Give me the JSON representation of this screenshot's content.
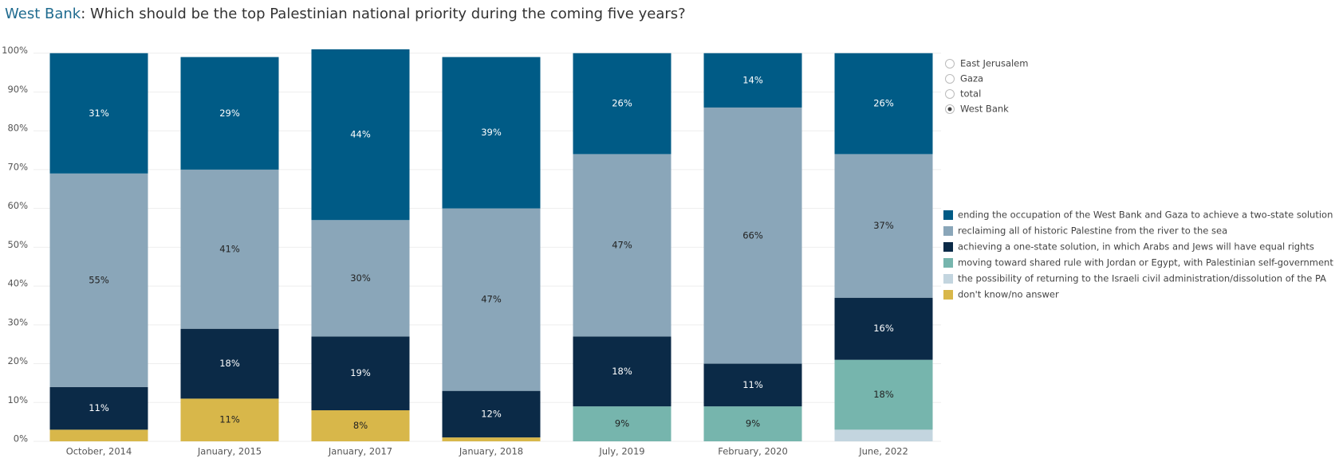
{
  "chart_data": {
    "type": "stacked_bar",
    "title_highlight": "West Bank",
    "title": ": Which should be the top Palestinian national priority during the coming five years?",
    "categories": [
      "October, 2014",
      "January, 2015",
      "January, 2017",
      "January, 2018",
      "July, 2019",
      "February, 2020",
      "June, 2022"
    ],
    "series": [
      {
        "name": "don't know/no answer",
        "color": "#d8b74a",
        "values": [
          3,
          11,
          8,
          1,
          null,
          null,
          null
        ],
        "value_labels": [
          null,
          "11%",
          "8%",
          null,
          null,
          null,
          null
        ]
      },
      {
        "name": "the possibility of returning to the Israeli civil administration/dissolution of the PA",
        "color": "#c3d5df",
        "values": [
          null,
          null,
          null,
          null,
          null,
          null,
          3
        ],
        "value_labels": [
          null,
          null,
          null,
          null,
          null,
          null,
          null
        ]
      },
      {
        "name": "moving toward shared rule with Jordan or Egypt, with Palestinian self-government",
        "color": "#76b5ad",
        "values": [
          null,
          null,
          null,
          null,
          9,
          9,
          18
        ],
        "value_labels": [
          null,
          null,
          null,
          null,
          "9%",
          "9%",
          "18%"
        ]
      },
      {
        "name": "achieving a one-state solution, in which Arabs and Jews will have equal rights",
        "color": "#0b2a47",
        "values": [
          11,
          18,
          19,
          12,
          18,
          11,
          16
        ],
        "value_labels": [
          "11%",
          "18%",
          "19%",
          "12%",
          "18%",
          "11%",
          "16%"
        ]
      },
      {
        "name": "reclaiming all of historic Palestine from the river to the sea",
        "color": "#8aa6b9",
        "values": [
          55,
          41,
          30,
          47,
          47,
          66,
          37
        ],
        "value_labels": [
          "55%",
          "41%",
          "30%",
          "47%",
          "47%",
          "66%",
          "37%"
        ]
      },
      {
        "name": "ending the occupation of the West Bank and Gaza to achieve a two-state solution",
        "color": "#005b86",
        "values": [
          31,
          29,
          44,
          39,
          26,
          14,
          26
        ],
        "value_labels": [
          "31%",
          "29%",
          "44%",
          "39%",
          "26%",
          "14%",
          "26%"
        ]
      }
    ],
    "ylim": [
      0,
      102
    ],
    "yticks": [
      {
        "value": 0,
        "label": "0%"
      },
      {
        "value": 10,
        "label": "10%"
      },
      {
        "value": 20,
        "label": "20%"
      },
      {
        "value": 30,
        "label": "30%"
      },
      {
        "value": 40,
        "label": "40%"
      },
      {
        "value": 50,
        "label": "50%"
      },
      {
        "value": 60,
        "label": "60%"
      },
      {
        "value": 70,
        "label": "70%"
      },
      {
        "value": 80,
        "label": "80%"
      },
      {
        "value": 90,
        "label": "90%"
      },
      {
        "value": 100,
        "label": "100%"
      }
    ],
    "grid": true,
    "filter": {
      "options": [
        "East Jerusalem",
        "Gaza",
        "total",
        "West Bank"
      ],
      "selected": "West Bank"
    }
  }
}
